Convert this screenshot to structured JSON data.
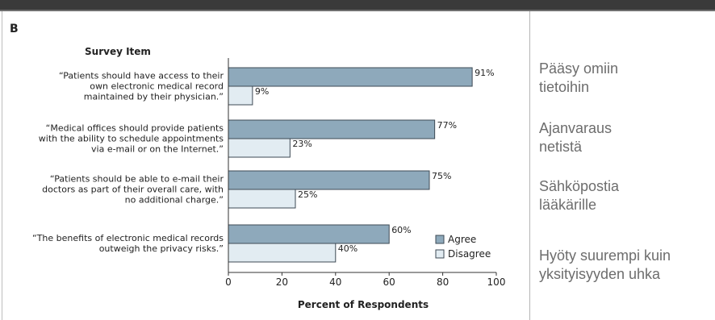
{
  "panel_label": "B",
  "chart_data": {
    "type": "bar",
    "category_header": "Survey Item",
    "categories": [
      [
        "“Patients should have access to their",
        "own electronic medical record",
        "maintained by their physician.”"
      ],
      [
        "“Medical offices should provide patients",
        "with the ability to schedule appointments",
        "via e-mail or on the Internet.”"
      ],
      [
        "“Patients should be able to e-mail their",
        "doctors as part of their overall care, with",
        "no additional charge.”"
      ],
      [
        "“The benefits of electronic medical records",
        "outweigh the privacy risks.”"
      ]
    ],
    "series": [
      {
        "name": "Agree",
        "values": [
          91,
          77,
          75,
          60
        ],
        "labels": [
          "91%",
          "77%",
          "75%",
          "60%"
        ],
        "color": "#8ea9bb"
      },
      {
        "name": "Disagree",
        "values": [
          9,
          23,
          25,
          40
        ],
        "labels": [
          "9%",
          "23%",
          "25%",
          "40%"
        ],
        "color": "#e2ecf2"
      }
    ],
    "xlabel": "Percent of Respondents",
    "xlim": [
      0,
      100
    ],
    "xticks": [
      0,
      20,
      40,
      60,
      80,
      100
    ],
    "grid": false,
    "legend_position": "bottom-right"
  },
  "annotations": [
    {
      "lines": [
        "Pääsy omiin",
        "tietoihin"
      ]
    },
    {
      "lines": [
        "Ajanvaraus",
        "netistä"
      ]
    },
    {
      "lines": [
        "Sähköpostia",
        "lääkärille"
      ]
    },
    {
      "lines": [
        "Hyöty suurempi kuin",
        "yksityisyyden uhka"
      ]
    }
  ]
}
